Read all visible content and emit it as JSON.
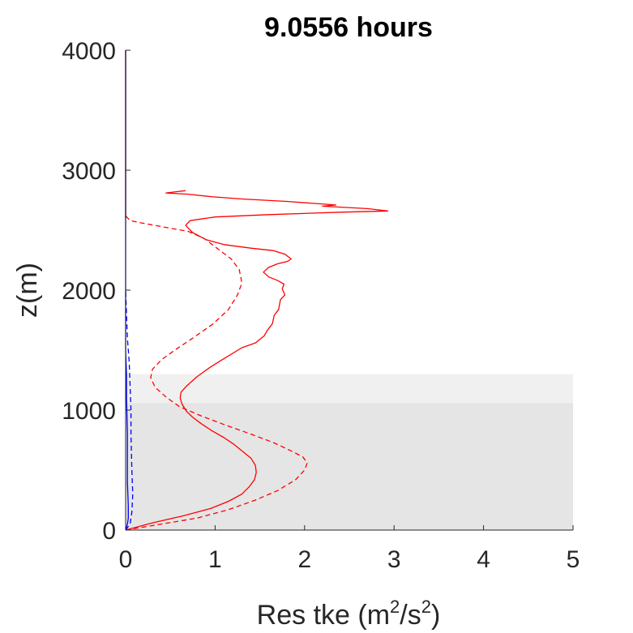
{
  "chart_data": {
    "type": "line",
    "title": "9.0556 hours",
    "xlabel": {
      "base": "Res tke (m",
      "sup1": "2",
      "mid": "/s",
      "sup2": "2",
      "end": ")"
    },
    "ylabel": "z(m)",
    "xlim": [
      0,
      5
    ],
    "ylim": [
      0,
      4000
    ],
    "xticks": [
      "0",
      "1",
      "2",
      "3",
      "4",
      "5"
    ],
    "yticks": [
      "0",
      "1000",
      "2000",
      "3000",
      "4000"
    ],
    "grid": false,
    "legend": "none",
    "shaded_regions": [
      {
        "y0": 0,
        "y1": 1060,
        "x0": 0,
        "x1": 5,
        "color": "#e5e5e5"
      },
      {
        "y0": 1060,
        "y1": 1300,
        "x0": 0,
        "x1": 5,
        "color": "#f0f0f0"
      }
    ],
    "series": [
      {
        "color": "#ff0000",
        "style": "solid",
        "points": [
          [
            0.0,
            0
          ],
          [
            0.3,
            60
          ],
          [
            0.65,
            120
          ],
          [
            0.95,
            180
          ],
          [
            1.15,
            240
          ],
          [
            1.3,
            300
          ],
          [
            1.38,
            360
          ],
          [
            1.44,
            420
          ],
          [
            1.46,
            480
          ],
          [
            1.45,
            540
          ],
          [
            1.4,
            600
          ],
          [
            1.3,
            660
          ],
          [
            1.2,
            720
          ],
          [
            1.1,
            770
          ],
          [
            0.96,
            830
          ],
          [
            0.84,
            890
          ],
          [
            0.75,
            940
          ],
          [
            0.68,
            990
          ],
          [
            0.63,
            1050
          ],
          [
            0.61,
            1100
          ],
          [
            0.62,
            1150
          ],
          [
            0.68,
            1200
          ],
          [
            0.8,
            1280
          ],
          [
            0.95,
            1360
          ],
          [
            1.1,
            1430
          ],
          [
            1.3,
            1520
          ],
          [
            1.45,
            1560
          ],
          [
            1.55,
            1620
          ],
          [
            1.58,
            1660
          ],
          [
            1.64,
            1720
          ],
          [
            1.66,
            1790
          ],
          [
            1.71,
            1840
          ],
          [
            1.73,
            1920
          ],
          [
            1.78,
            1960
          ],
          [
            1.75,
            2010
          ],
          [
            1.77,
            2050
          ],
          [
            1.7,
            2080
          ],
          [
            1.6,
            2110
          ],
          [
            1.54,
            2150
          ],
          [
            1.6,
            2190
          ],
          [
            1.7,
            2220
          ],
          [
            1.81,
            2240
          ],
          [
            1.85,
            2260
          ],
          [
            1.78,
            2300
          ],
          [
            1.65,
            2330
          ],
          [
            1.4,
            2350
          ],
          [
            1.1,
            2380
          ],
          [
            0.9,
            2420
          ],
          [
            0.75,
            2480
          ],
          [
            0.67,
            2540
          ],
          [
            0.72,
            2580
          ],
          [
            1.0,
            2610
          ],
          [
            1.6,
            2630
          ],
          [
            2.4,
            2650
          ],
          [
            2.93,
            2660
          ],
          [
            2.7,
            2680
          ],
          [
            2.2,
            2700
          ],
          [
            2.35,
            2710
          ],
          [
            1.8,
            2740
          ],
          [
            1.3,
            2760
          ],
          [
            0.95,
            2780
          ],
          [
            0.7,
            2800
          ],
          [
            0.45,
            2810
          ],
          [
            0.67,
            2830
          ]
        ]
      },
      {
        "color": "#ff0000",
        "style": "dashed",
        "points": [
          [
            0.0,
            0
          ],
          [
            0.4,
            50
          ],
          [
            0.8,
            100
          ],
          [
            1.15,
            170
          ],
          [
            1.45,
            250
          ],
          [
            1.7,
            330
          ],
          [
            1.9,
            420
          ],
          [
            2.0,
            500
          ],
          [
            2.03,
            560
          ],
          [
            1.98,
            610
          ],
          [
            1.85,
            660
          ],
          [
            1.65,
            730
          ],
          [
            1.4,
            800
          ],
          [
            1.1,
            880
          ],
          [
            0.85,
            950
          ],
          [
            0.6,
            1030
          ],
          [
            0.45,
            1110
          ],
          [
            0.33,
            1190
          ],
          [
            0.28,
            1270
          ],
          [
            0.3,
            1340
          ],
          [
            0.4,
            1420
          ],
          [
            0.55,
            1500
          ],
          [
            0.75,
            1600
          ],
          [
            0.98,
            1720
          ],
          [
            1.15,
            1840
          ],
          [
            1.25,
            1960
          ],
          [
            1.3,
            2060
          ],
          [
            1.27,
            2170
          ],
          [
            1.18,
            2260
          ],
          [
            1.02,
            2350
          ],
          [
            0.88,
            2430
          ],
          [
            0.7,
            2490
          ],
          [
            0.4,
            2530
          ],
          [
            0.18,
            2560
          ],
          [
            0.05,
            2580
          ],
          [
            0.0,
            2620
          ]
        ]
      },
      {
        "color": "#0000ff",
        "style": "solid",
        "points": [
          [
            0.0,
            0
          ],
          [
            0.02,
            50
          ],
          [
            0.03,
            100
          ],
          [
            0.03,
            200
          ],
          [
            0.02,
            400
          ],
          [
            0.02,
            800
          ],
          [
            0.01,
            1100
          ],
          [
            0.01,
            1300
          ],
          [
            0.0,
            1500
          ],
          [
            0.0,
            2000
          ],
          [
            0.0,
            4000
          ]
        ]
      },
      {
        "color": "#0000ff",
        "style": "dashed",
        "points": [
          [
            0.0,
            0
          ],
          [
            0.05,
            50
          ],
          [
            0.07,
            150
          ],
          [
            0.08,
            300
          ],
          [
            0.07,
            500
          ],
          [
            0.06,
            800
          ],
          [
            0.06,
            1000
          ],
          [
            0.05,
            1200
          ],
          [
            0.04,
            1400
          ],
          [
            0.02,
            1600
          ],
          [
            0.01,
            1800
          ],
          [
            0.0,
            2000
          ]
        ]
      },
      {
        "color": "#8b0000",
        "style": "solid",
        "points": [
          [
            0.0,
            2600
          ],
          [
            0.0,
            4000
          ]
        ]
      }
    ]
  }
}
